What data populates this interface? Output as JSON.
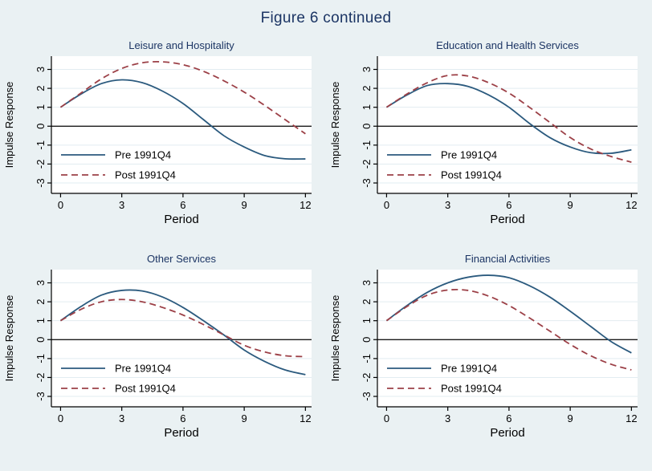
{
  "title": "Figure 6 continued",
  "colors": {
    "background": "#eaf1f3",
    "plot_background": "#ffffff",
    "grid_line": "#e2ecf1",
    "axis_line": "#000000",
    "zero_line": "#1a1a1a",
    "pre": "#2b5a7e",
    "post": "#9c4047",
    "heading": "#1c3564",
    "text": "#000000"
  },
  "legend": {
    "pre_label": "Pre 1991Q4",
    "post_label": "Post 1991Q4"
  },
  "chart_data": [
    {
      "type": "line",
      "title": "Leisure and Hospitality",
      "xlabel": "Period",
      "ylabel": "Impulse Response",
      "x": [
        0,
        1,
        2,
        3,
        4,
        5,
        6,
        7,
        8,
        9,
        10,
        11,
        12
      ],
      "xticks": [
        0,
        3,
        6,
        9,
        12
      ],
      "yticks": [
        -3,
        -2,
        -1,
        0,
        1,
        2,
        3
      ],
      "xlim": [
        -0.45,
        12.3
      ],
      "ylim": [
        -3.55,
        3.7
      ],
      "grid": "horizontal",
      "zero_line": true,
      "legend_position": "inside-bottom-left",
      "series": [
        {
          "name": "Pre 1991Q4",
          "style": "solid",
          "color_key": "pre",
          "values": [
            1.0,
            1.7,
            2.25,
            2.45,
            2.3,
            1.85,
            1.2,
            0.35,
            -0.5,
            -1.1,
            -1.55,
            -1.72,
            -1.73
          ]
        },
        {
          "name": "Post 1991Q4",
          "style": "dashed",
          "color_key": "post",
          "values": [
            1.0,
            1.75,
            2.5,
            3.05,
            3.35,
            3.4,
            3.25,
            2.9,
            2.4,
            1.8,
            1.1,
            0.35,
            -0.4
          ]
        }
      ]
    },
    {
      "type": "line",
      "title": "Education and Health Services",
      "xlabel": "Period",
      "ylabel": "Impulse Response",
      "x": [
        0,
        1,
        2,
        3,
        4,
        5,
        6,
        7,
        8,
        9,
        10,
        11,
        12
      ],
      "xticks": [
        0,
        3,
        6,
        9,
        12
      ],
      "yticks": [
        -3,
        -2,
        -1,
        0,
        1,
        2,
        3
      ],
      "xlim": [
        -0.45,
        12.3
      ],
      "ylim": [
        -3.55,
        3.7
      ],
      "grid": "horizontal",
      "zero_line": true,
      "legend_position": "inside-bottom-left",
      "series": [
        {
          "name": "Pre 1991Q4",
          "style": "solid",
          "color_key": "pre",
          "values": [
            1.0,
            1.65,
            2.15,
            2.25,
            2.1,
            1.65,
            1.0,
            0.15,
            -0.6,
            -1.1,
            -1.4,
            -1.43,
            -1.25
          ]
        },
        {
          "name": "Post 1991Q4",
          "style": "dashed",
          "color_key": "post",
          "values": [
            1.0,
            1.7,
            2.3,
            2.68,
            2.65,
            2.3,
            1.75,
            1.0,
            0.2,
            -0.6,
            -1.2,
            -1.6,
            -1.9
          ]
        }
      ]
    },
    {
      "type": "line",
      "title": "Other Services",
      "xlabel": "Period",
      "ylabel": "Impulse Response",
      "x": [
        0,
        1,
        2,
        3,
        4,
        5,
        6,
        7,
        8,
        9,
        10,
        11,
        12
      ],
      "xticks": [
        0,
        3,
        6,
        9,
        12
      ],
      "yticks": [
        -3,
        -2,
        -1,
        0,
        1,
        2,
        3
      ],
      "xlim": [
        -0.45,
        12.3
      ],
      "ylim": [
        -3.55,
        3.7
      ],
      "grid": "horizontal",
      "zero_line": true,
      "legend_position": "inside-bottom-left",
      "series": [
        {
          "name": "Pre 1991Q4",
          "style": "solid",
          "color_key": "pre",
          "values": [
            1.0,
            1.75,
            2.35,
            2.6,
            2.57,
            2.25,
            1.7,
            1.0,
            0.25,
            -0.55,
            -1.15,
            -1.6,
            -1.85
          ]
        },
        {
          "name": "Post 1991Q4",
          "style": "dashed",
          "color_key": "post",
          "values": [
            1.0,
            1.6,
            2.0,
            2.12,
            2.0,
            1.7,
            1.3,
            0.8,
            0.25,
            -0.3,
            -0.65,
            -0.85,
            -0.9
          ]
        }
      ]
    },
    {
      "type": "line",
      "title": "Financial Activities",
      "xlabel": "Period",
      "ylabel": "Impulse Response",
      "x": [
        0,
        1,
        2,
        3,
        4,
        5,
        6,
        7,
        8,
        9,
        10,
        11,
        12
      ],
      "xticks": [
        0,
        3,
        6,
        9,
        12
      ],
      "yticks": [
        -3,
        -2,
        -1,
        0,
        1,
        2,
        3
      ],
      "xlim": [
        -0.45,
        12.3
      ],
      "ylim": [
        -3.55,
        3.7
      ],
      "grid": "horizontal",
      "zero_line": true,
      "legend_position": "inside-bottom-left",
      "series": [
        {
          "name": "Pre 1991Q4",
          "style": "solid",
          "color_key": "pre",
          "values": [
            1.0,
            1.8,
            2.5,
            3.0,
            3.3,
            3.4,
            3.27,
            2.85,
            2.25,
            1.5,
            0.7,
            -0.1,
            -0.7
          ]
        },
        {
          "name": "Post 1991Q4",
          "style": "dashed",
          "color_key": "post",
          "values": [
            1.0,
            1.75,
            2.35,
            2.62,
            2.6,
            2.3,
            1.8,
            1.15,
            0.45,
            -0.25,
            -0.85,
            -1.3,
            -1.6
          ]
        }
      ]
    }
  ]
}
